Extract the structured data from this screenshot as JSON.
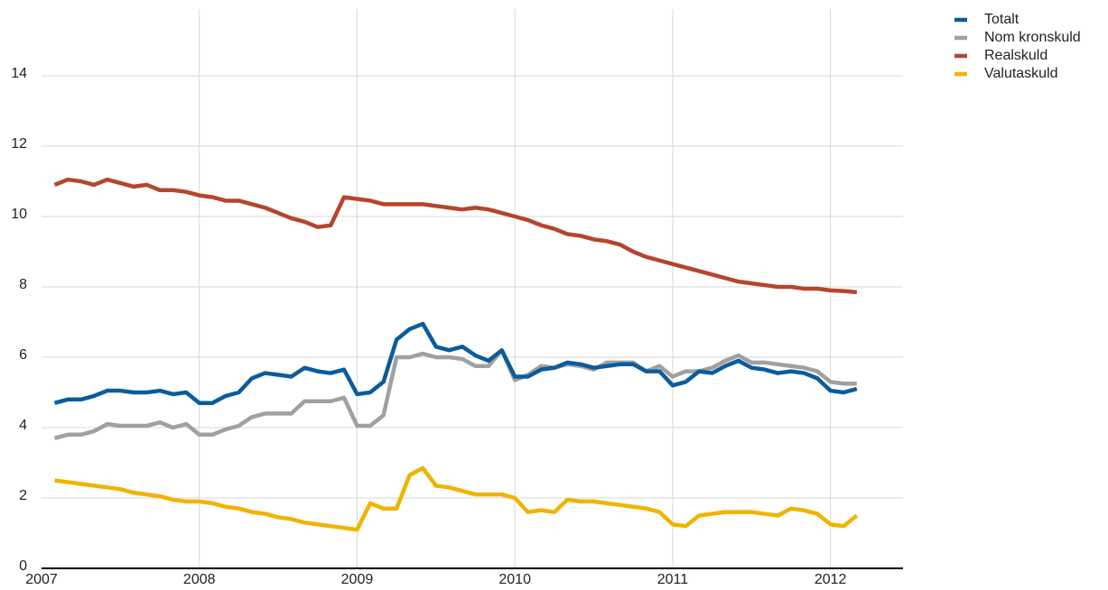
{
  "chart_data": {
    "type": "line",
    "x": [
      2007.083,
      2007.167,
      2007.25,
      2007.333,
      2007.417,
      2007.5,
      2007.583,
      2007.667,
      2007.75,
      2007.833,
      2007.917,
      2008,
      2008.083,
      2008.167,
      2008.25,
      2008.333,
      2008.417,
      2008.5,
      2008.583,
      2008.667,
      2008.75,
      2008.833,
      2008.917,
      2009,
      2009.083,
      2009.167,
      2009.25,
      2009.333,
      2009.417,
      2009.5,
      2009.583,
      2009.667,
      2009.75,
      2009.833,
      2009.917,
      2010,
      2010.083,
      2010.167,
      2010.25,
      2010.333,
      2010.417,
      2010.5,
      2010.583,
      2010.667,
      2010.75,
      2010.833,
      2010.917,
      2011,
      2011.083,
      2011.167,
      2011.25,
      2011.333,
      2011.417,
      2011.5,
      2011.583,
      2011.667,
      2011.75,
      2011.833,
      2011.917,
      2012,
      2012.083,
      2012.167
    ],
    "series": [
      {
        "name": "Totalt",
        "color": "#0a5c9c",
        "values": [
          4.7,
          4.8,
          4.8,
          4.9,
          5.05,
          5.05,
          5.0,
          5.0,
          5.05,
          4.95,
          5.0,
          4.7,
          4.7,
          4.9,
          5.0,
          5.4,
          5.55,
          5.5,
          5.45,
          5.7,
          5.6,
          5.55,
          5.65,
          4.95,
          5.0,
          5.3,
          6.5,
          6.8,
          6.95,
          6.3,
          6.2,
          6.3,
          6.05,
          5.9,
          6.2,
          5.45,
          5.45,
          5.65,
          5.7,
          5.85,
          5.8,
          5.7,
          5.75,
          5.8,
          5.8,
          5.6,
          5.6,
          5.2,
          5.3,
          5.6,
          5.55,
          5.75,
          5.9,
          5.7,
          5.65,
          5.55,
          5.6,
          5.55,
          5.4,
          5.05,
          5.0,
          5.1
        ]
      },
      {
        "name": "Nom kronskuld",
        "color": "#a0a0a0",
        "values": [
          3.7,
          3.8,
          3.8,
          3.9,
          4.1,
          4.05,
          4.05,
          4.05,
          4.15,
          4.0,
          4.1,
          3.8,
          3.8,
          3.95,
          4.05,
          4.3,
          4.4,
          4.4,
          4.4,
          4.75,
          4.75,
          4.75,
          4.85,
          4.05,
          4.05,
          4.35,
          6.0,
          6.0,
          6.1,
          6.0,
          6.0,
          5.95,
          5.75,
          5.75,
          6.2,
          5.35,
          5.5,
          5.75,
          5.7,
          5.8,
          5.75,
          5.65,
          5.85,
          5.85,
          5.85,
          5.6,
          5.75,
          5.45,
          5.6,
          5.6,
          5.7,
          5.9,
          6.05,
          5.85,
          5.85,
          5.8,
          5.75,
          5.7,
          5.6,
          5.3,
          5.25,
          5.25
        ]
      },
      {
        "name": "Realskuld",
        "color": "#b5452f",
        "values": [
          10.9,
          11.05,
          11.0,
          10.9,
          11.05,
          10.95,
          10.85,
          10.9,
          10.75,
          10.75,
          10.7,
          10.6,
          10.55,
          10.45,
          10.45,
          10.35,
          10.25,
          10.1,
          9.95,
          9.85,
          9.7,
          9.75,
          10.55,
          10.5,
          10.45,
          10.35,
          10.35,
          10.35,
          10.35,
          10.3,
          10.25,
          10.2,
          10.25,
          10.2,
          10.1,
          10.0,
          9.9,
          9.75,
          9.65,
          9.5,
          9.45,
          9.35,
          9.3,
          9.2,
          9.0,
          8.85,
          8.75,
          8.65,
          8.55,
          8.45,
          8.35,
          8.25,
          8.15,
          8.1,
          8.05,
          8.0,
          8.0,
          7.95,
          7.95,
          7.9,
          7.88,
          7.85
        ]
      },
      {
        "name": "Valutaskuld",
        "color": "#f0b400",
        "values": [
          2.5,
          2.45,
          2.4,
          2.35,
          2.3,
          2.25,
          2.15,
          2.1,
          2.05,
          1.95,
          1.9,
          1.9,
          1.85,
          1.75,
          1.7,
          1.6,
          1.55,
          1.45,
          1.4,
          1.3,
          1.25,
          1.2,
          1.15,
          1.1,
          1.85,
          1.7,
          1.7,
          2.65,
          2.85,
          2.35,
          2.3,
          2.2,
          2.1,
          2.1,
          2.1,
          2.0,
          1.6,
          1.65,
          1.6,
          1.95,
          1.9,
          1.9,
          1.85,
          1.8,
          1.75,
          1.7,
          1.6,
          1.25,
          1.2,
          1.5,
          1.55,
          1.6,
          1.6,
          1.6,
          1.55,
          1.5,
          1.7,
          1.65,
          1.55,
          1.25,
          1.2,
          1.5
        ]
      }
    ],
    "xlim": [
      2007,
      2012.46
    ],
    "xticks": [
      2007,
      2008,
      2009,
      2010,
      2011,
      2012
    ],
    "ylim": [
      0,
      15.5
    ],
    "yticks": [
      0,
      2,
      4,
      6,
      8,
      10,
      12,
      14
    ],
    "grid": true,
    "legend": "top-right"
  }
}
